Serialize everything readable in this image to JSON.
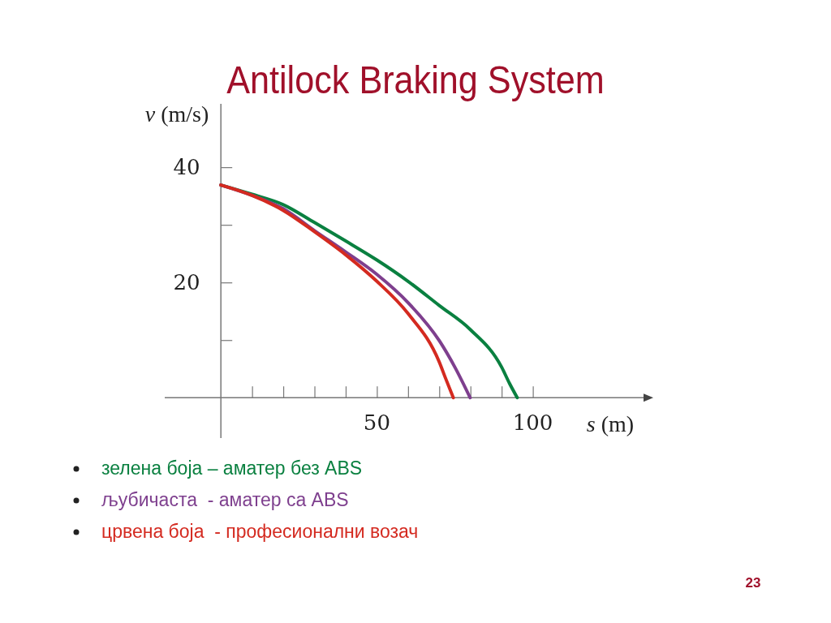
{
  "chart_data": {
    "type": "line",
    "title": "Antilock Braking System",
    "xlabel": "s (m)",
    "ylabel": "v (m/s)",
    "xlim": [
      -18,
      136
    ],
    "ylim": [
      -7,
      51
    ],
    "xticks": [
      {
        "value": 10,
        "label": null
      },
      {
        "value": 20,
        "label": null
      },
      {
        "value": 30,
        "label": null
      },
      {
        "value": 40,
        "label": null
      },
      50,
      {
        "value": 60,
        "label": null
      },
      {
        "value": 70,
        "label": null
      },
      {
        "value": 80,
        "label": null
      },
      {
        "value": 90,
        "label": null
      },
      100
    ],
    "yticks": [
      {
        "value": 10,
        "label": null
      },
      20,
      {
        "value": 30,
        "label": null
      },
      40
    ],
    "grid": false,
    "legend": "bottom",
    "marker": "none",
    "line_style": "solid",
    "series": [
      {
        "name": "зелена боја – аматер без ABS",
        "color": "#0a8040",
        "x": [
          0,
          10,
          20,
          30,
          40,
          50,
          60,
          70,
          80,
          90,
          92.5,
          95
        ],
        "values": [
          36.9,
          35.3,
          33.5,
          30.4,
          27.2,
          23.9,
          20.2,
          16.0,
          11.8,
          5.3,
          2.5,
          0
        ]
      },
      {
        "name": "љубичаста  - аматер са ABS",
        "color": "#7e3f8e",
        "x": [
          0,
          10,
          20,
          30,
          40,
          50,
          60,
          70,
          75,
          79.9
        ],
        "values": [
          36.9,
          35.1,
          32.8,
          29.0,
          25.3,
          21.4,
          16.5,
          9.9,
          5.3,
          0
        ]
      },
      {
        "name": "црвена боја  - професионални возач",
        "color": "#d42a20",
        "x": [
          0,
          10,
          20,
          30,
          40,
          50,
          60,
          70,
          72,
          74.5
        ],
        "values": [
          36.9,
          35.1,
          32.5,
          28.8,
          24.8,
          20.2,
          14.6,
          6.2,
          3.4,
          0
        ]
      }
    ],
    "annotations": [
      "23"
    ]
  }
}
